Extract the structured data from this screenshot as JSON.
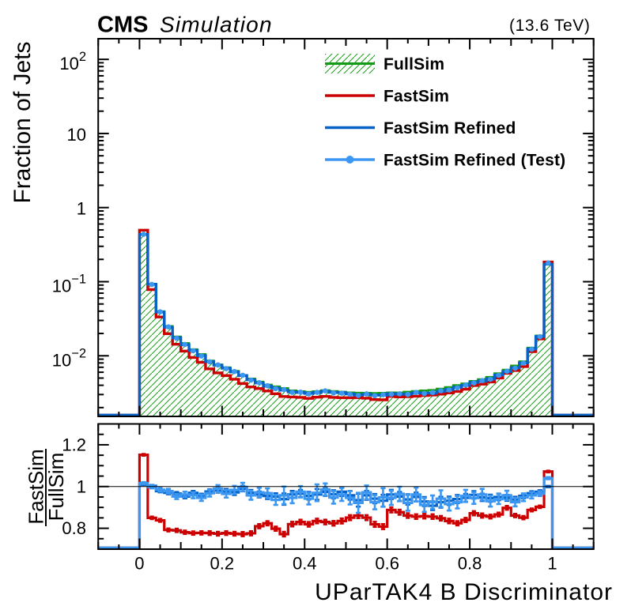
{
  "header": {
    "experiment": "CMS",
    "label": "Simulation",
    "energy": "(13.6 TeV)"
  },
  "colors": {
    "fullsim_green": "#149b14",
    "fastsim_red": "#cc0000",
    "refined_blue": "#0762c8",
    "test_lightblue": "#3b97f2",
    "axis_black": "#000000",
    "background": "#ffffff"
  },
  "legend": {
    "entries": [
      {
        "label": "FullSim",
        "style": "hatched-band-line",
        "color": "#149b14"
      },
      {
        "label": "FastSim",
        "style": "line",
        "color": "#cc0000"
      },
      {
        "label": "FastSim Refined",
        "style": "line",
        "color": "#0762c8"
      },
      {
        "label": "FastSim Refined (Test)",
        "style": "line-marker",
        "color": "#3b97f2"
      }
    ]
  },
  "chart_data": {
    "type": "line",
    "subtype": "step-histogram-with-ratio-panel",
    "title": "",
    "xlabel": "UParTAK4 B Discriminator",
    "ylabel": "Fraction of Jets",
    "ratio_ylabel_numerator": "FastSim",
    "ratio_ylabel_denominator": "FullSim",
    "xlim": [
      -0.1,
      1.1
    ],
    "ylim_main": [
      0.00152,
      190
    ],
    "yscale_main": "log",
    "ylim_ratio": [
      0.7,
      1.3
    ],
    "grid": false,
    "legend_position": "top-center-inside",
    "bins": {
      "n": 50,
      "x_start": 0.0,
      "x_end": 1.0,
      "width": 0.02
    },
    "x_ticks": [
      {
        "v": 0.0,
        "label": "0"
      },
      {
        "v": 0.2,
        "label": "0.2"
      },
      {
        "v": 0.4,
        "label": "0.4"
      },
      {
        "v": 0.6,
        "label": "0.6"
      },
      {
        "v": 0.8,
        "label": "0.8"
      },
      {
        "v": 1.0,
        "label": "1"
      }
    ],
    "y_ticks_main": [
      {
        "v": 100,
        "base": "10",
        "exp": "2"
      },
      {
        "v": 10,
        "base": "10",
        "exp": ""
      },
      {
        "v": 1,
        "base": "1",
        "exp": ""
      },
      {
        "v": 0.1,
        "base": "10",
        "exp": "−1"
      },
      {
        "v": 0.01,
        "base": "10",
        "exp": "−2"
      }
    ],
    "y_ticks_ratio": [
      {
        "v": 0.8,
        "label": "0.8"
      },
      {
        "v": 1.0,
        "label": "1"
      },
      {
        "v": 1.2,
        "label": "1.2"
      }
    ],
    "series": [
      {
        "name": "FullSim",
        "color": "#149b14",
        "style": "hatched-fill-step",
        "values": [
          0.43,
          0.092,
          0.0398,
          0.0251,
          0.0181,
          0.0148,
          0.0122,
          0.0105,
          0.00857,
          0.0076,
          0.00695,
          0.00623,
          0.00547,
          0.0049,
          0.00446,
          0.00407,
          0.00385,
          0.00365,
          0.00339,
          0.00331,
          0.00325,
          0.00331,
          0.00341,
          0.00333,
          0.00326,
          0.00319,
          0.00316,
          0.00315,
          0.00313,
          0.00315,
          0.00319,
          0.00318,
          0.00326,
          0.00333,
          0.00339,
          0.00345,
          0.00358,
          0.00377,
          0.004,
          0.00422,
          0.00455,
          0.00481,
          0.00517,
          0.00579,
          0.00646,
          0.00735,
          0.0084,
          0.0128,
          0.0187,
          0.172
        ]
      },
      {
        "name": "FastSim",
        "color": "#cc0000",
        "style": "step",
        "values": [
          0.49536,
          0.0782,
          0.033352,
          0.019879,
          0.014299,
          0.011559,
          0.009479,
          0.008169,
          0.006659,
          0.005882,
          0.0054,
          0.004822,
          0.004223,
          0.003802,
          0.003613,
          0.003354,
          0.003072,
          0.002818,
          0.00278,
          0.002747,
          0.002662,
          0.002764,
          0.00283,
          0.002744,
          0.002722,
          0.002715,
          0.002721,
          0.002681,
          0.002563,
          0.002545,
          0.002833,
          0.002789,
          0.002807,
          0.00285,
          0.002909,
          0.002953,
          0.003036,
          0.003148,
          0.003296,
          0.003545,
          0.003968,
          0.004141,
          0.004426,
          0.005014,
          0.005801,
          0.006328,
          0.007148,
          0.011366,
          0.016886,
          0.184384
        ]
      },
      {
        "name": "FastSim Refined",
        "color": "#0762c8",
        "style": "step",
        "values": [
          0.4343,
          0.092276,
          0.038924,
          0.024347,
          0.017485,
          0.01409,
          0.011834,
          0.010038,
          0.008364,
          0.007463,
          0.00679,
          0.006056,
          0.005415,
          0.004753,
          0.004291,
          0.003887,
          0.003665,
          0.003431,
          0.003261,
          0.003197,
          0.003107,
          0.003184,
          0.003321,
          0.003207,
          0.003178,
          0.003056,
          0.002955,
          0.003018,
          0.002948,
          0.002936,
          0.003069,
          0.003027,
          0.003058,
          0.003164,
          0.003146,
          0.003133,
          0.003312,
          0.003514,
          0.00376,
          0.003992,
          0.004368,
          0.00456,
          0.00488,
          0.005501,
          0.006111,
          0.006894,
          0.008022,
          0.01239,
          0.018233,
          0.172
        ]
      },
      {
        "name": "FastSim Refined (Test)",
        "color": "#3b97f2",
        "style": "markers",
        "values": [
          0.43688,
          0.091816,
          0.039203,
          0.024548,
          0.017231,
          0.014238,
          0.011688,
          0.009933,
          0.008296,
          0.007524,
          0.006707,
          0.00613,
          0.005459,
          0.004694,
          0.004335,
          0.00394,
          0.003604,
          0.003497,
          0.003207,
          0.003227,
          0.003061,
          0.003211,
          0.003362,
          0.003157,
          0.003136,
          0.003018,
          0.002914,
          0.003062,
          0.002895,
          0.002986,
          0.003018,
          0.003069,
          0.003006,
          0.003203,
          0.003092,
          0.003191,
          0.003372,
          0.003453,
          0.0037,
          0.00403,
          0.0043,
          0.004627,
          0.004808,
          0.005443,
          0.006189,
          0.006799,
          0.007963,
          0.012262,
          0.018064,
          0.17888
        ]
      }
    ],
    "ratio_series": [
      {
        "name": "FastSim / FullSim",
        "color": "#cc0000",
        "style": "step-errorbars",
        "values": [
          1.152,
          0.85,
          0.838,
          0.792,
          0.79,
          0.781,
          0.777,
          0.778,
          0.777,
          0.774,
          0.777,
          0.774,
          0.772,
          0.776,
          0.81,
          0.824,
          0.798,
          0.772,
          0.82,
          0.83,
          0.819,
          0.835,
          0.83,
          0.824,
          0.835,
          0.851,
          0.861,
          0.851,
          0.819,
          0.808,
          0.888,
          0.877,
          0.861,
          0.856,
          0.858,
          0.856,
          0.848,
          0.835,
          0.824,
          0.84,
          0.872,
          0.861,
          0.856,
          0.866,
          0.898,
          0.861,
          0.851,
          0.888,
          0.903,
          1.072
        ],
        "errors": [
          0.004,
          0.006,
          0.007,
          0.007,
          0.008,
          0.008,
          0.008,
          0.008,
          0.009,
          0.009,
          0.009,
          0.009,
          0.01,
          0.01,
          0.01,
          0.01,
          0.01,
          0.011,
          0.011,
          0.011,
          0.011,
          0.011,
          0.011,
          0.011,
          0.012,
          0.012,
          0.012,
          0.012,
          0.012,
          0.012,
          0.012,
          0.012,
          0.011,
          0.011,
          0.011,
          0.011,
          0.011,
          0.011,
          0.01,
          0.01,
          0.01,
          0.01,
          0.009,
          0.009,
          0.009,
          0.008,
          0.008,
          0.007,
          0.006,
          0.004
        ]
      },
      {
        "name": "FastSim Refined / FullSim",
        "color": "#0762c8",
        "style": "step-errorbars",
        "values": [
          1.01,
          1.003,
          0.978,
          0.97,
          0.966,
          0.952,
          0.97,
          0.956,
          0.976,
          0.982,
          0.977,
          0.972,
          0.99,
          0.97,
          0.962,
          0.955,
          0.952,
          0.94,
          0.962,
          0.966,
          0.956,
          0.962,
          0.974,
          0.963,
          0.975,
          0.958,
          0.935,
          0.958,
          0.942,
          0.932,
          0.962,
          0.952,
          0.938,
          0.95,
          0.928,
          0.908,
          0.925,
          0.932,
          0.94,
          0.946,
          0.96,
          0.948,
          0.944,
          0.95,
          0.946,
          0.938,
          0.955,
          0.968,
          0.975,
          1.0
        ],
        "errors": [
          0.0033,
          0.0046,
          0.0059,
          0.0072,
          0.0078,
          0.0084,
          0.0091,
          0.0097,
          0.0104,
          0.0111,
          0.0117,
          0.0123,
          0.013,
          0.0137,
          0.0143,
          0.0149,
          0.0156,
          0.0273,
          0.0169,
          0.0175,
          0.0182,
          0.026,
          0.0189,
          0.0195,
          0.0202,
          0.0208,
          0.0312,
          0.0215,
          0.0221,
          0.0286,
          0.0221,
          0.0221,
          0.0247,
          0.0215,
          0.0215,
          0.0208,
          0.026,
          0.0202,
          0.0195,
          0.0189,
          0.0182,
          0.0175,
          0.0169,
          0.0156,
          0.0143,
          0.013,
          0.0117,
          0.0097,
          0.0072,
          0.0033
        ]
      },
      {
        "name": "FastSim Refined (Test) / FullSim",
        "color": "#3b97f2",
        "style": "step-errorbars",
        "values": [
          1.016,
          0.998,
          0.985,
          0.978,
          0.952,
          0.962,
          0.958,
          0.946,
          0.968,
          0.99,
          0.965,
          0.984,
          0.998,
          0.958,
          0.972,
          0.968,
          0.936,
          0.958,
          0.946,
          0.975,
          0.942,
          0.97,
          0.986,
          0.948,
          0.962,
          0.946,
          0.922,
          0.972,
          0.925,
          0.948,
          0.946,
          0.965,
          0.922,
          0.962,
          0.912,
          0.925,
          0.942,
          0.916,
          0.925,
          0.955,
          0.945,
          0.962,
          0.93,
          0.94,
          0.958,
          0.925,
          0.948,
          0.958,
          0.966,
          1.04
        ],
        "errors": [
          0.005,
          0.007,
          0.009,
          0.011,
          0.012,
          0.013,
          0.014,
          0.015,
          0.016,
          0.017,
          0.018,
          0.019,
          0.02,
          0.021,
          0.022,
          0.023,
          0.024,
          0.042,
          0.026,
          0.027,
          0.028,
          0.04,
          0.029,
          0.03,
          0.031,
          0.032,
          0.048,
          0.033,
          0.034,
          0.044,
          0.034,
          0.034,
          0.038,
          0.033,
          0.033,
          0.032,
          0.04,
          0.031,
          0.03,
          0.029,
          0.028,
          0.027,
          0.026,
          0.024,
          0.022,
          0.02,
          0.018,
          0.015,
          0.011,
          0.005
        ]
      }
    ],
    "reference_line_ratio": 1.0
  }
}
